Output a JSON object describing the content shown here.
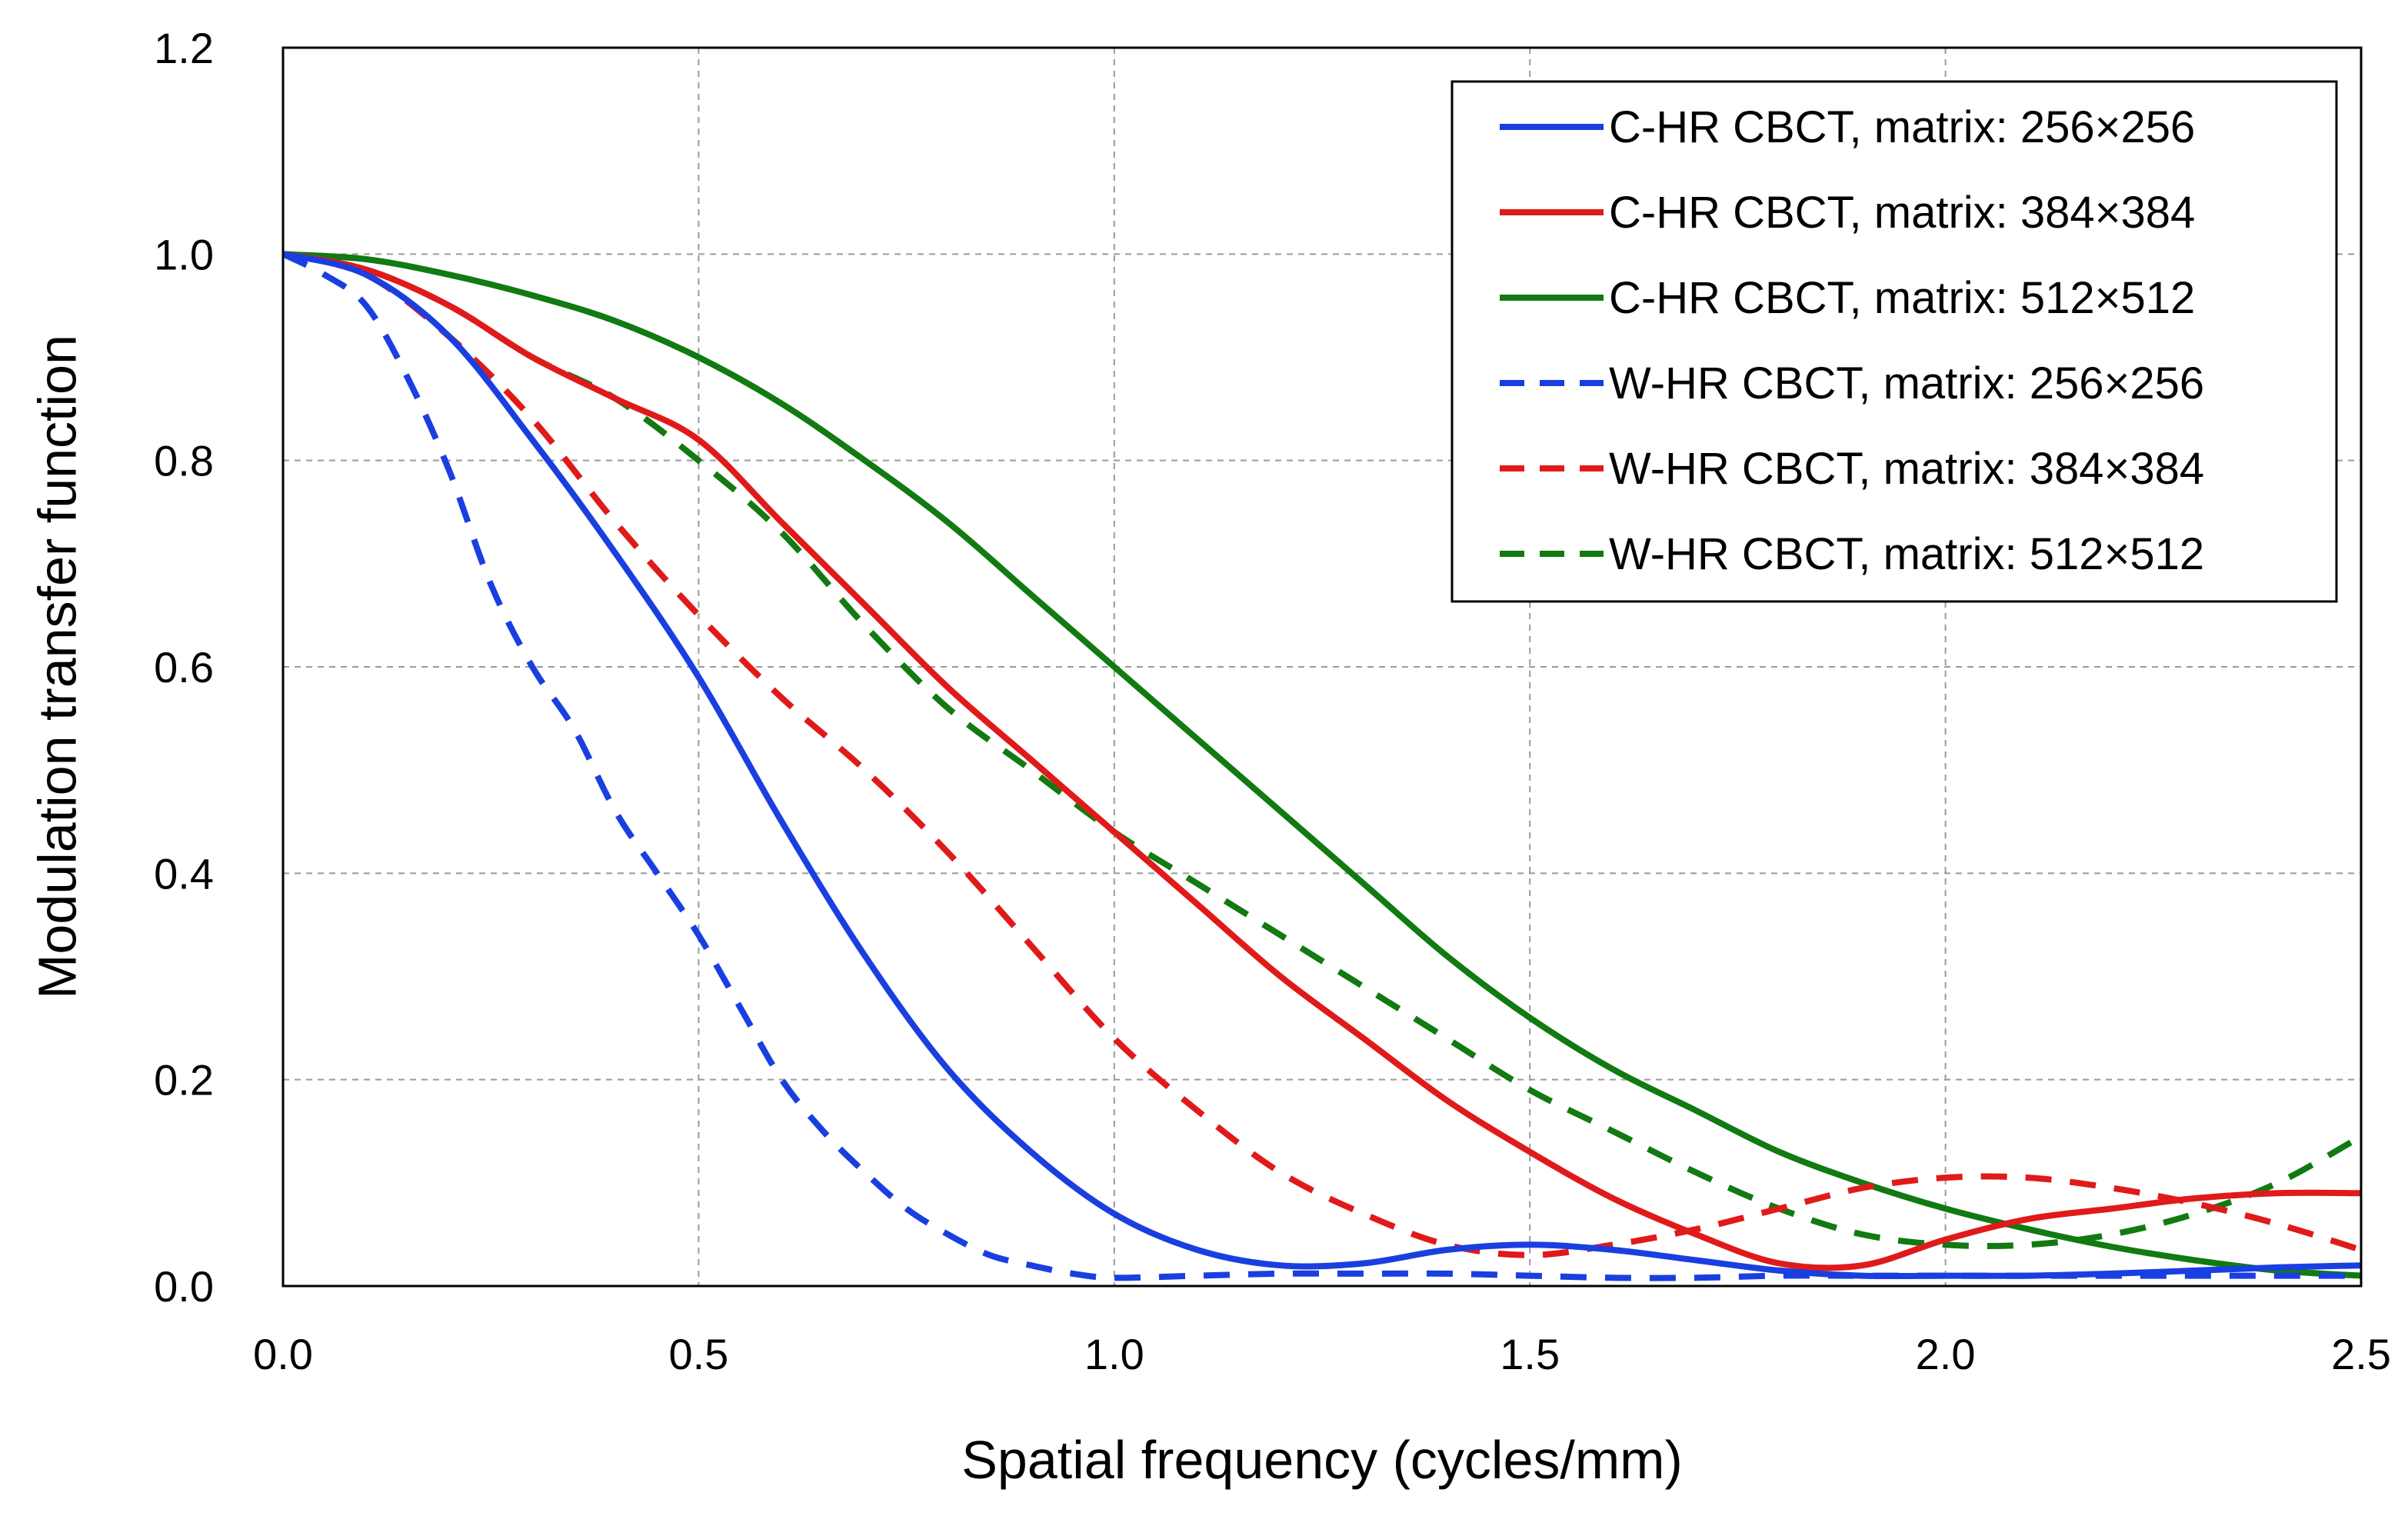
{
  "chart_data": {
    "type": "line",
    "title": "",
    "xlabel": "Spatial frequency (cycles/mm)",
    "ylabel": "Modulation transfer function",
    "xlim": [
      0,
      2.5
    ],
    "ylim": [
      0,
      1.2
    ],
    "x_ticks": [
      0.0,
      0.5,
      1.0,
      1.5,
      2.0,
      2.5
    ],
    "x_tick_labels": [
      "0.0",
      "0.5",
      "1.0",
      "1.5",
      "2.0",
      "2.5"
    ],
    "y_ticks": [
      0.0,
      0.2,
      0.4,
      0.6,
      0.8,
      1.0,
      1.2
    ],
    "y_tick_labels": [
      "0.0",
      "0.2",
      "0.4",
      "0.6",
      "0.8",
      "1.0",
      "1.2"
    ],
    "grid": true,
    "legend_position": "top-right",
    "series": [
      {
        "name": "C-HR CBCT, matrix: 256×256",
        "color": "#1a3fe0",
        "dash": "solid",
        "x": [
          0,
          0.1,
          0.2,
          0.3,
          0.4,
          0.5,
          0.6,
          0.7,
          0.8,
          0.9,
          1.0,
          1.1,
          1.2,
          1.3,
          1.4,
          1.5,
          1.6,
          1.7,
          1.8,
          1.9,
          2.0,
          2.1,
          2.2,
          2.3,
          2.4,
          2.5
        ],
        "y": [
          1.0,
          0.98,
          0.92,
          0.82,
          0.71,
          0.59,
          0.45,
          0.32,
          0.21,
          0.13,
          0.07,
          0.035,
          0.02,
          0.022,
          0.035,
          0.04,
          0.035,
          0.025,
          0.015,
          0.01,
          0.01,
          0.01,
          0.012,
          0.015,
          0.018,
          0.02
        ]
      },
      {
        "name": "C-HR CBCT, matrix: 384×384",
        "color": "#e01a1a",
        "dash": "solid",
        "x": [
          0,
          0.1,
          0.2,
          0.3,
          0.4,
          0.5,
          0.6,
          0.7,
          0.8,
          0.9,
          1.0,
          1.1,
          1.2,
          1.3,
          1.4,
          1.5,
          1.6,
          1.7,
          1.8,
          1.9,
          2.0,
          2.1,
          2.2,
          2.3,
          2.4,
          2.5
        ],
        "y": [
          1.0,
          0.985,
          0.95,
          0.9,
          0.86,
          0.82,
          0.74,
          0.66,
          0.58,
          0.51,
          0.44,
          0.37,
          0.3,
          0.24,
          0.18,
          0.13,
          0.085,
          0.05,
          0.022,
          0.02,
          0.045,
          0.065,
          0.075,
          0.085,
          0.09,
          0.09
        ]
      },
      {
        "name": "C-HR CBCT, matrix: 512×512",
        "color": "#117a11",
        "dash": "solid",
        "x": [
          0,
          0.1,
          0.2,
          0.3,
          0.4,
          0.5,
          0.6,
          0.7,
          0.8,
          0.9,
          1.0,
          1.1,
          1.2,
          1.3,
          1.4,
          1.5,
          1.6,
          1.7,
          1.8,
          1.9,
          2.0,
          2.1,
          2.2,
          2.3,
          2.4,
          2.5
        ],
        "y": [
          1.0,
          0.995,
          0.98,
          0.96,
          0.935,
          0.9,
          0.855,
          0.8,
          0.74,
          0.67,
          0.6,
          0.53,
          0.46,
          0.39,
          0.32,
          0.26,
          0.21,
          0.17,
          0.13,
          0.1,
          0.075,
          0.055,
          0.038,
          0.025,
          0.015,
          0.01
        ]
      },
      {
        "name": "W-HR CBCT, matrix: 256×256",
        "color": "#1a3fe0",
        "dash": "dashed",
        "x": [
          0,
          0.05,
          0.1,
          0.15,
          0.2,
          0.25,
          0.3,
          0.35,
          0.4,
          0.45,
          0.5,
          0.55,
          0.6,
          0.65,
          0.7,
          0.75,
          0.8,
          0.85,
          0.9,
          0.95,
          1.0,
          1.1,
          1.2,
          1.3,
          1.4,
          1.5,
          1.6,
          1.7,
          1.8,
          1.9,
          2.0,
          2.1,
          2.2,
          2.3,
          2.4,
          2.5
        ],
        "y": [
          1.0,
          0.98,
          0.95,
          0.88,
          0.79,
          0.68,
          0.6,
          0.54,
          0.46,
          0.4,
          0.34,
          0.27,
          0.2,
          0.15,
          0.11,
          0.075,
          0.05,
          0.03,
          0.02,
          0.012,
          0.008,
          0.01,
          0.012,
          0.012,
          0.012,
          0.01,
          0.008,
          0.008,
          0.01,
          0.01,
          0.01,
          0.01,
          0.01,
          0.01,
          0.01,
          0.01
        ]
      },
      {
        "name": "W-HR CBCT, matrix: 384×384",
        "color": "#e01a1a",
        "dash": "dashed",
        "x": [
          0,
          0.1,
          0.2,
          0.3,
          0.4,
          0.5,
          0.6,
          0.7,
          0.8,
          0.9,
          1.0,
          1.1,
          1.2,
          1.3,
          1.4,
          1.5,
          1.6,
          1.7,
          1.8,
          1.9,
          2.0,
          2.1,
          2.2,
          2.3,
          2.4,
          2.5
        ],
        "y": [
          1.0,
          0.98,
          0.92,
          0.84,
          0.74,
          0.65,
          0.57,
          0.5,
          0.42,
          0.33,
          0.24,
          0.17,
          0.11,
          0.07,
          0.04,
          0.03,
          0.04,
          0.055,
          0.075,
          0.095,
          0.105,
          0.105,
          0.095,
          0.08,
          0.06,
          0.035
        ]
      },
      {
        "name": "W-HR CBCT, matrix: 512×512",
        "color": "#117a11",
        "dash": "dashed",
        "x": [
          0,
          0.1,
          0.2,
          0.3,
          0.4,
          0.5,
          0.6,
          0.7,
          0.8,
          0.9,
          1.0,
          1.1,
          1.2,
          1.3,
          1.4,
          1.5,
          1.6,
          1.7,
          1.8,
          1.9,
          2.0,
          2.1,
          2.2,
          2.3,
          2.4,
          2.5
        ],
        "y": [
          1.0,
          0.985,
          0.95,
          0.9,
          0.86,
          0.8,
          0.73,
          0.64,
          0.56,
          0.5,
          0.44,
          0.39,
          0.34,
          0.29,
          0.24,
          0.19,
          0.15,
          0.11,
          0.075,
          0.05,
          0.04,
          0.04,
          0.05,
          0.07,
          0.1,
          0.145
        ]
      }
    ]
  }
}
